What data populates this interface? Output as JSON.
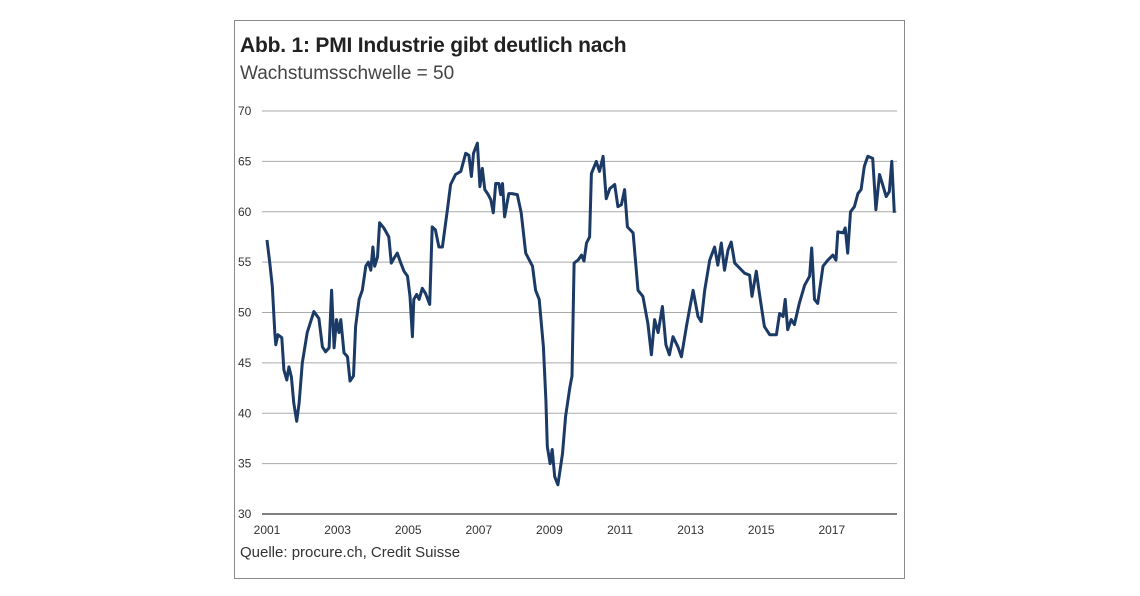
{
  "chart_data": {
    "type": "line",
    "title": "Abb. 1: PMI Industrie gibt deutlich nach",
    "subtitle": "Wachstumsschwelle = 50",
    "source": "Quelle: procure.ch, Credit Suisse",
    "xlabel": "",
    "ylabel": "",
    "ylim": [
      30,
      70
    ],
    "xlim": [
      2001,
      2018.8
    ],
    "y_ticks": [
      "30",
      "35",
      "40",
      "45",
      "50",
      "55",
      "60",
      "65",
      "70"
    ],
    "x_ticks": [
      "2001",
      "2003",
      "2005",
      "2007",
      "2009",
      "2011",
      "2013",
      "2015",
      "2017"
    ],
    "grid": true,
    "line_color": "#1b3a66",
    "x": [
      2001.0,
      2001.08,
      2001.15,
      2001.22,
      2001.25,
      2001.31,
      2001.42,
      2001.48,
      2001.56,
      2001.62,
      2001.69,
      2001.76,
      2001.84,
      2001.91,
      2002.0,
      2002.14,
      2002.33,
      2002.47,
      2002.57,
      2002.66,
      2002.76,
      2002.83,
      2002.9,
      2002.97,
      2003.04,
      2003.09,
      2003.18,
      2003.28,
      2003.35,
      2003.45,
      2003.51,
      2003.61,
      2003.7,
      2003.8,
      2003.87,
      2003.94,
      2004.0,
      2004.05,
      2004.13,
      2004.19,
      2004.31,
      2004.45,
      2004.52,
      2004.6,
      2004.69,
      2004.79,
      2004.88,
      2004.98,
      2005.05,
      2005.12,
      2005.16,
      2005.24,
      2005.31,
      2005.4,
      2005.49,
      2005.61,
      2005.68,
      2005.77,
      2005.87,
      2005.97,
      2006.11,
      2006.2,
      2006.34,
      2006.49,
      2006.63,
      2006.72,
      2006.79,
      2006.85,
      2006.96,
      2007.03,
      2007.1,
      2007.17,
      2007.25,
      2007.34,
      2007.41,
      2007.48,
      2007.57,
      2007.62,
      2007.67,
      2007.73,
      2007.85,
      2007.94,
      2008.09,
      2008.2,
      2008.33,
      2008.52,
      2008.61,
      2008.71,
      2008.83,
      2008.9,
      2008.94,
      2009.02,
      2009.08,
      2009.15,
      2009.24,
      2009.37,
      2009.46,
      2009.58,
      2009.64,
      2009.7,
      2009.81,
      2009.91,
      2009.98,
      2010.05,
      2010.14,
      2010.19,
      2010.33,
      2010.42,
      2010.52,
      2010.61,
      2010.71,
      2010.85,
      2010.94,
      2011.04,
      2011.13,
      2011.21,
      2011.37,
      2011.51,
      2011.65,
      2011.79,
      2011.89,
      2011.98,
      2012.08,
      2012.2,
      2012.3,
      2012.4,
      2012.5,
      2012.64,
      2012.74,
      2012.88,
      2012.97,
      2013.07,
      2013.21,
      2013.3,
      2013.4,
      2013.54,
      2013.68,
      2013.77,
      2013.87,
      2013.96,
      2014.06,
      2014.15,
      2014.25,
      2014.39,
      2014.53,
      2014.67,
      2014.74,
      2014.86,
      2014.95,
      2015.09,
      2015.24,
      2015.43,
      2015.52,
      2015.62,
      2015.68,
      2015.75,
      2015.85,
      2015.94,
      2016.08,
      2016.23,
      2016.37,
      2016.43,
      2016.51,
      2016.6,
      2016.75,
      2016.89,
      2017.03,
      2017.12,
      2017.17,
      2017.32,
      2017.38,
      2017.45,
      2017.53,
      2017.64,
      2017.74,
      2017.83,
      2017.92,
      2018.02,
      2018.16,
      2018.25,
      2018.35,
      2018.44,
      2018.54,
      2018.63,
      2018.7,
      2018.77
    ],
    "y": [
      57.2,
      54.9,
      52.6,
      48.0,
      46.8,
      47.8,
      47.5,
      44.3,
      43.3,
      44.6,
      43.6,
      41.0,
      39.2,
      41.0,
      45.0,
      48.0,
      50.1,
      49.4,
      46.6,
      46.1,
      46.5,
      52.2,
      46.5,
      49.3,
      48.0,
      49.3,
      46.0,
      45.6,
      43.2,
      43.7,
      48.6,
      51.3,
      52.2,
      54.6,
      55.0,
      54.2,
      56.5,
      54.6,
      55.5,
      58.9,
      58.4,
      57.5,
      54.9,
      55.4,
      55.9,
      54.9,
      54.1,
      53.6,
      51.6,
      47.6,
      51.3,
      51.8,
      51.3,
      52.4,
      51.9,
      50.8,
      58.5,
      58.2,
      56.5,
      56.5,
      60.2,
      62.7,
      63.7,
      64.0,
      65.8,
      65.6,
      63.5,
      65.8,
      66.8,
      62.5,
      64.3,
      62.2,
      61.8,
      61.2,
      59.9,
      62.8,
      62.8,
      61.7,
      62.8,
      59.5,
      61.8,
      61.8,
      61.7,
      59.9,
      55.9,
      54.6,
      52.2,
      51.3,
      46.6,
      41.3,
      36.7,
      35.0,
      36.4,
      33.7,
      32.9,
      36.0,
      39.7,
      42.6,
      43.7,
      54.9,
      55.2,
      55.7,
      55.1,
      56.9,
      57.5,
      63.8,
      65.0,
      64.0,
      65.5,
      61.3,
      62.3,
      62.7,
      60.5,
      60.7,
      62.2,
      58.5,
      57.9,
      52.2,
      51.6,
      48.9,
      45.8,
      49.3,
      48.0,
      50.6,
      46.8,
      45.8,
      47.6,
      46.6,
      45.6,
      48.6,
      50.3,
      52.2,
      49.6,
      49.1,
      52.2,
      55.2,
      56.5,
      54.7,
      56.9,
      54.2,
      56.2,
      57.0,
      54.9,
      54.4,
      53.9,
      53.7,
      51.6,
      54.1,
      51.9,
      48.6,
      47.8,
      47.8,
      49.9,
      49.6,
      51.3,
      48.3,
      49.3,
      48.8,
      50.9,
      52.7,
      53.6,
      56.4,
      51.3,
      50.9,
      54.6,
      55.2,
      55.7,
      55.2,
      58.0,
      57.9,
      58.4,
      55.9,
      60.0,
      60.5,
      61.8,
      62.2,
      64.5,
      65.5,
      65.3,
      60.2,
      63.7,
      62.7,
      61.5,
      62.0,
      65.0,
      59.9
    ]
  }
}
